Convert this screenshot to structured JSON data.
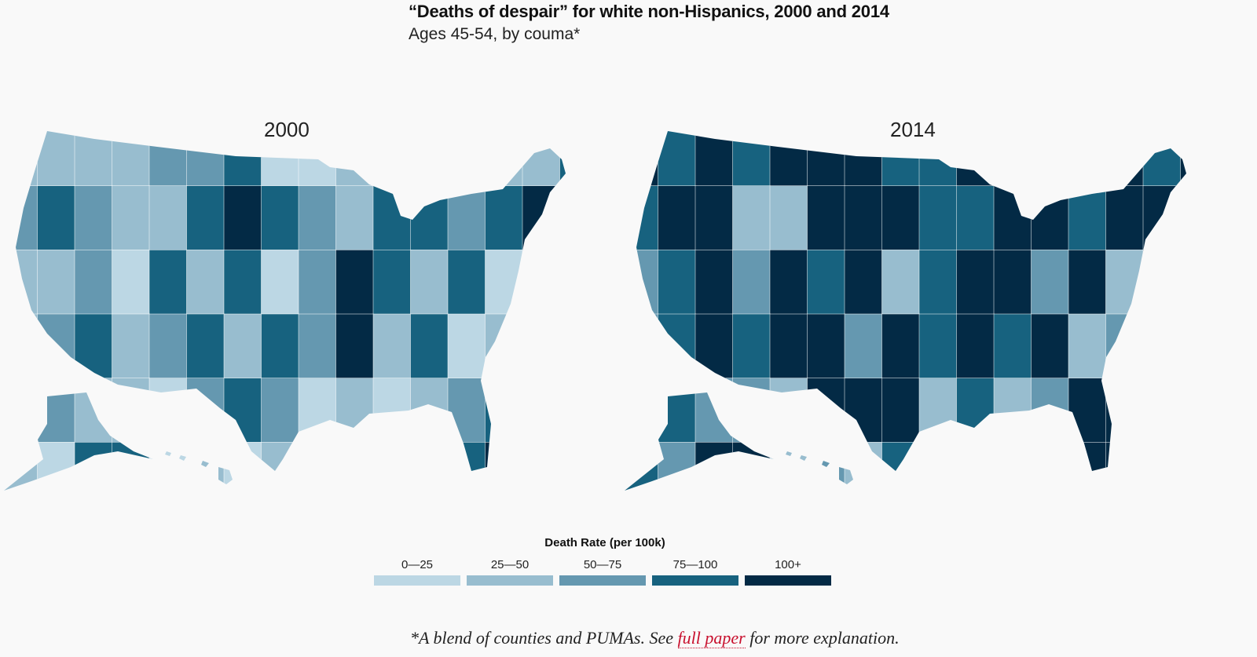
{
  "header": {
    "title": "“Deaths of despair” for white non-Hispanics, 2000 and 2014",
    "subtitle": "Ages 45-54, by couma*"
  },
  "maps": [
    {
      "year": "2000",
      "region_bins": [
        1,
        1,
        1,
        1,
        2,
        2,
        3,
        0,
        0,
        1,
        1,
        0,
        1,
        1,
        1,
        3,
        2,
        3,
        2,
        1,
        1,
        3,
        4,
        3,
        2,
        1,
        3,
        3,
        2,
        3,
        4,
        3,
        1,
        1,
        2,
        0,
        3,
        1,
        3,
        0,
        2,
        4,
        3,
        1,
        3,
        0,
        2,
        0,
        1,
        2,
        3,
        1,
        2,
        3,
        1,
        3,
        2,
        4,
        1,
        3,
        0,
        1,
        2,
        1,
        0,
        2,
        1,
        1,
        0,
        2,
        3,
        2,
        0,
        1,
        0,
        1,
        2,
        3,
        1,
        2,
        1,
        0,
        3,
        3,
        0,
        1,
        0,
        1,
        1,
        3,
        2,
        1,
        3,
        4,
        1,
        0
      ]
    },
    {
      "year": "2014",
      "region_bins": [
        4,
        3,
        4,
        3,
        4,
        4,
        4,
        3,
        3,
        4,
        2,
        3,
        4,
        4,
        3,
        4,
        3,
        4,
        4,
        1,
        1,
        4,
        4,
        4,
        3,
        3,
        4,
        4,
        3,
        4,
        4,
        4,
        2,
        3,
        4,
        2,
        4,
        3,
        4,
        1,
        3,
        4,
        4,
        2,
        4,
        1,
        4,
        1,
        2,
        3,
        4,
        3,
        4,
        4,
        2,
        4,
        3,
        4,
        3,
        4,
        1,
        2,
        4,
        3,
        1,
        3,
        2,
        2,
        1,
        4,
        4,
        4,
        1,
        3,
        1,
        2,
        4,
        4,
        2,
        4,
        3,
        2,
        4,
        4,
        1,
        2,
        1,
        3,
        3,
        4,
        4,
        2,
        4,
        4,
        3,
        1
      ]
    }
  ],
  "legend": {
    "title": "Death Rate (per 100k)",
    "bins": [
      {
        "label": "0—25",
        "color": "#bcd7e4"
      },
      {
        "label": "25—50",
        "color": "#98bdcf"
      },
      {
        "label": "50—75",
        "color": "#6598b0"
      },
      {
        "label": "75—100",
        "color": "#17627f"
      },
      {
        "label": "100+",
        "color": "#032a45"
      }
    ]
  },
  "footnote": {
    "prefix": "*A blend of counties and PUMAs. See ",
    "link": "full paper",
    "suffix": " for more explanation."
  }
}
